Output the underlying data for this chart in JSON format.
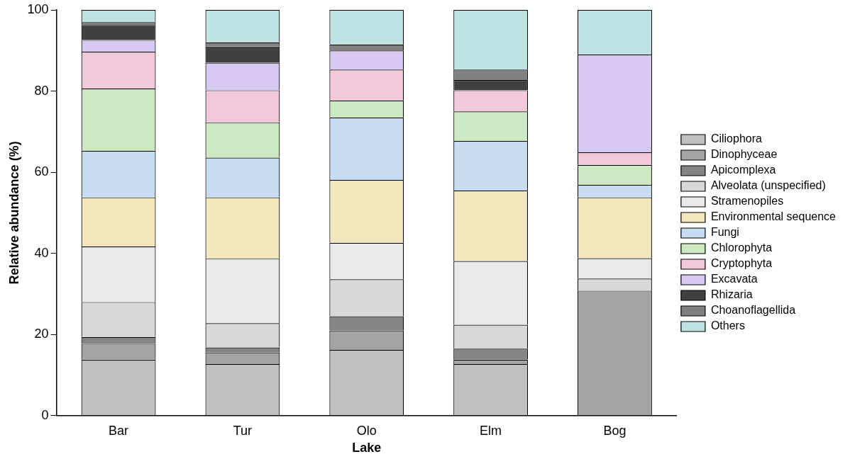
{
  "chart_data": {
    "type": "bar",
    "stacked": true,
    "xlabel": "Lake",
    "ylabel": "Relative abundance (%)",
    "categories": [
      "Bar",
      "Tur",
      "Olo",
      "Elm",
      "Bog"
    ],
    "ylim": [
      0,
      100
    ],
    "yticks": [
      0,
      20,
      40,
      60,
      80,
      100
    ],
    "grid": false,
    "legend": "right",
    "series": [
      {
        "name": "Ciliophora",
        "color": "#c0c0c0",
        "values": [
          13.8,
          12.7,
          16.2,
          12.7,
          0
        ]
      },
      {
        "name": "Dinophyceae",
        "color": "#a4a4a4",
        "values": [
          3.9,
          2.9,
          4.8,
          1.1,
          30.8
        ]
      },
      {
        "name": "Apicomplexa",
        "color": "#858585",
        "values": [
          1.7,
          1.2,
          3.5,
          2.7,
          0
        ]
      },
      {
        "name": "Alveolata (unspecified)",
        "color": "#d8d8d8",
        "values": [
          8.6,
          6.0,
          9.1,
          5.9,
          3.0
        ]
      },
      {
        "name": "Stramenopiles",
        "color": "#e9e9e9",
        "values": [
          13.7,
          15.9,
          9.0,
          15.7,
          5.0
        ]
      },
      {
        "name": "Environmental sequence",
        "color": "#f2e6bd",
        "values": [
          12.1,
          15.1,
          15.5,
          17.4,
          15.0
        ]
      },
      {
        "name": "Fungi",
        "color": "#c6dcf2",
        "values": [
          11.5,
          9.8,
          15.4,
          12.2,
          3.1
        ]
      },
      {
        "name": "Chlorophyta",
        "color": "#cde9c2",
        "values": [
          15.3,
          8.7,
          4.2,
          7.3,
          4.9
        ]
      },
      {
        "name": "Cryptophyta",
        "color": "#f2c9db",
        "values": [
          9.1,
          7.9,
          7.6,
          5.2,
          3.1
        ]
      },
      {
        "name": "Excavata",
        "color": "#d8c9f2",
        "values": [
          2.9,
          6.8,
          4.7,
          0,
          24.1
        ]
      },
      {
        "name": "Rhizaria",
        "color": "#404040",
        "values": [
          3.7,
          4.0,
          0,
          2.5,
          0
        ]
      },
      {
        "name": "Choanoflagellida",
        "color": "#808080",
        "values": [
          0.7,
          1.0,
          1.5,
          2.6,
          0
        ]
      },
      {
        "name": "Others",
        "color": "#bfe3e3",
        "values": [
          3.0,
          8.0,
          8.5,
          14.7,
          11.0
        ]
      }
    ]
  }
}
